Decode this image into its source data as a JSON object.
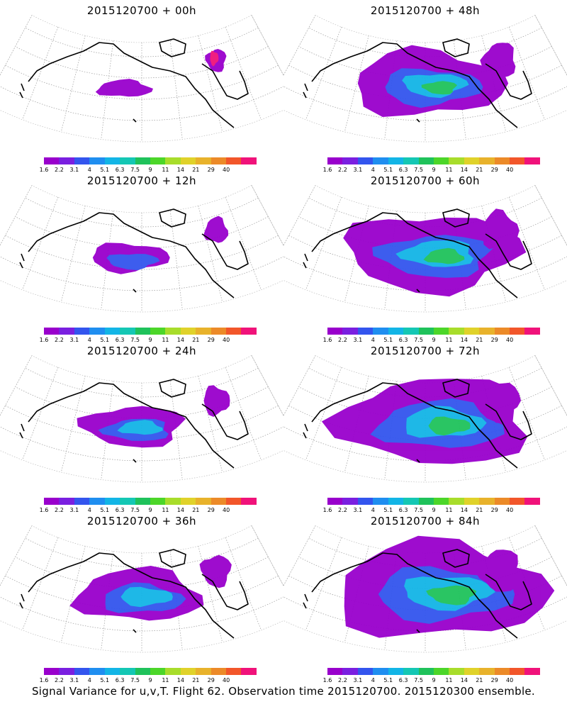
{
  "panels": [
    {
      "title": "2015120700 + 00h",
      "spread": 0.0
    },
    {
      "title": "2015120700 + 48h",
      "spread": 0.62
    },
    {
      "title": "2015120700 + 12h",
      "spread": 0.15
    },
    {
      "title": "2015120700 + 60h",
      "spread": 0.76
    },
    {
      "title": "2015120700 + 24h",
      "spread": 0.3
    },
    {
      "title": "2015120700 + 72h",
      "spread": 0.88
    },
    {
      "title": "2015120700 + 36h",
      "spread": 0.45
    },
    {
      "title": "2015120700 + 84h",
      "spread": 1.0
    }
  ],
  "colorbar": {
    "labels": [
      "1.6",
      "2.2",
      "3.1",
      "4",
      "5.1",
      "6.3",
      "7.5",
      "9",
      "11",
      "14",
      "21",
      "29",
      "40"
    ],
    "colors": [
      "#9900cc",
      "#7a1fe0",
      "#3355ee",
      "#1f8ef0",
      "#12b5e6",
      "#14c7b4",
      "#1fc25b",
      "#4cd629",
      "#a8dd2b",
      "#e0d22a",
      "#e8b22b",
      "#ec8a28",
      "#f2562a",
      "#f0127a"
    ]
  },
  "caption": "Signal Variance for u,v,T. Flight 62. Observation time 2015120700. 2015120300 ensemble."
}
